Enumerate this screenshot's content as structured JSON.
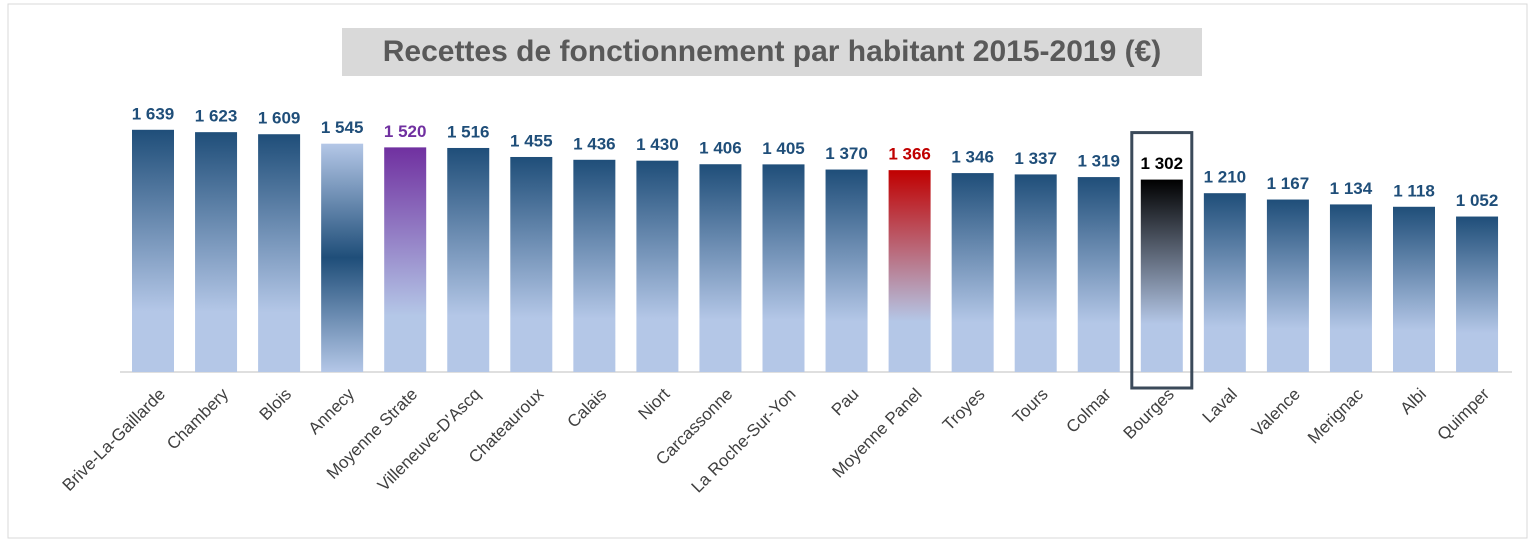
{
  "chart_data": {
    "type": "bar",
    "title": "Recettes de fonctionnement par habitant 2015-2019 (€)",
    "categories": [
      "Brive-La-Gaillarde",
      "Chambery",
      "Blois",
      "Annecy",
      "Moyenne Strate",
      "Villeneuve-D'Ascq",
      "Chateauroux",
      "Calais",
      "Niort",
      "Carcassonne",
      "La Roche-Sur-Yon",
      "Pau",
      "Moyenne Panel",
      "Troyes",
      "Tours",
      "Colmar",
      "Bourges",
      "Laval",
      "Valence",
      "Merignac",
      "Albi",
      "Quimper"
    ],
    "values": [
      1639,
      1623,
      1609,
      1545,
      1520,
      1516,
      1455,
      1436,
      1430,
      1406,
      1405,
      1370,
      1366,
      1346,
      1337,
      1319,
      1302,
      1210,
      1167,
      1134,
      1118,
      1052
    ],
    "value_labels": [
      "1 639",
      "1 623",
      "1 609",
      "1 545",
      "1 520",
      "1 516",
      "1 455",
      "1 436",
      "1 430",
      "1 406",
      "1 405",
      "1 370",
      "1 366",
      "1 346",
      "1 337",
      "1 319",
      "1 302",
      "1 210",
      "1 167",
      "1 134",
      "1 118",
      "1 052"
    ],
    "colors": [
      "#1f4e79",
      "#1f4e79",
      "#1f4e79",
      "#1f4e79",
      "#7030a0",
      "#1f4e79",
      "#1f4e79",
      "#1f4e79",
      "#1f4e79",
      "#1f4e79",
      "#1f4e79",
      "#1f4e79",
      "#c00000",
      "#1f4e79",
      "#1f4e79",
      "#1f4e79",
      "#000000",
      "#1f4e79",
      "#1f4e79",
      "#1f4e79",
      "#1f4e79",
      "#1f4e79"
    ],
    "styles": [
      "linear",
      "linear",
      "linear",
      "radial",
      "linear",
      "linear",
      "linear",
      "linear",
      "linear",
      "linear",
      "linear",
      "linear",
      "linear",
      "linear",
      "linear",
      "linear",
      "linear",
      "linear",
      "linear",
      "linear",
      "linear",
      "linear"
    ],
    "label_colors": [
      "#1f4e79",
      "#1f4e79",
      "#1f4e79",
      "#1f4e79",
      "#7030a0",
      "#1f4e79",
      "#1f4e79",
      "#1f4e79",
      "#1f4e79",
      "#1f4e79",
      "#1f4e79",
      "#1f4e79",
      "#c00000",
      "#1f4e79",
      "#1f4e79",
      "#1f4e79",
      "#000000",
      "#1f4e79",
      "#1f4e79",
      "#1f4e79",
      "#1f4e79",
      "#1f4e79"
    ],
    "highlight_index": 16,
    "ylim": [
      0,
      1800
    ]
  }
}
